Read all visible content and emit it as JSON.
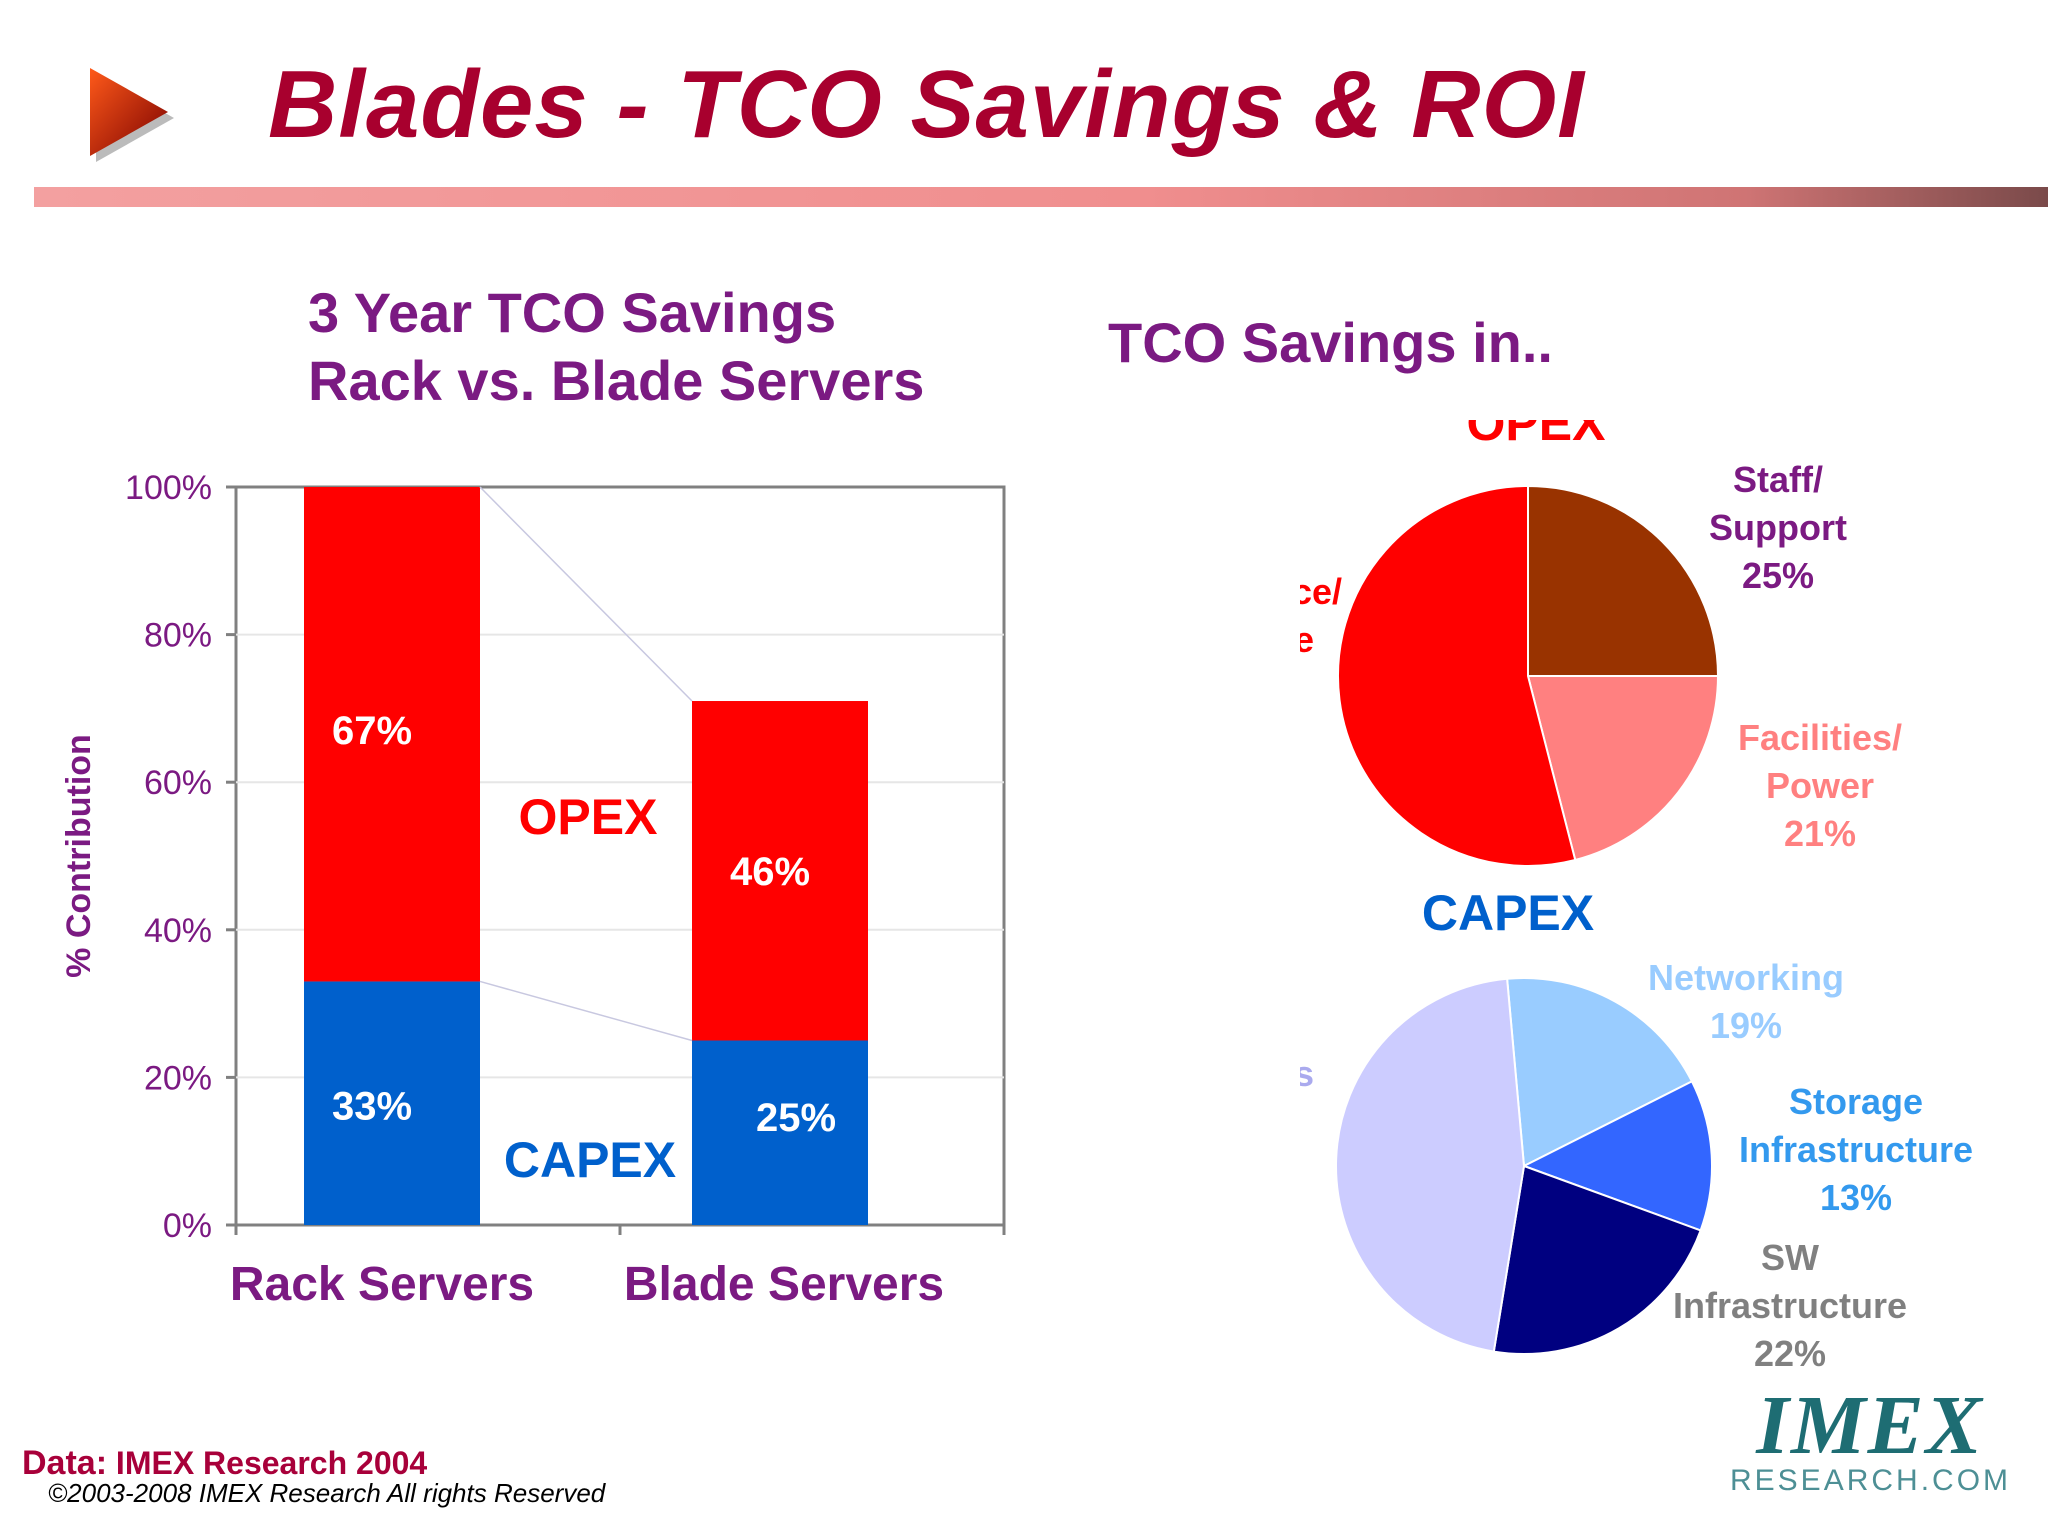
{
  "slide": {
    "title": "Blades - TCO Savings & ROI"
  },
  "chart_data": [
    {
      "type": "bar",
      "stacked": true,
      "title": "3 Year TCO Savings",
      "subtitle": "Rack vs. Blade Servers",
      "categories": [
        "Rack Servers",
        "Blade Servers"
      ],
      "series": [
        {
          "name": "CAPEX",
          "values": [
            33,
            25
          ],
          "labels": [
            "33%",
            "25%"
          ],
          "color": "#0060cc"
        },
        {
          "name": "OPEX",
          "values": [
            67,
            46
          ],
          "labels": [
            "67%",
            "46%"
          ],
          "color": "#ff0000"
        }
      ],
      "ylabel": "% Contribution",
      "ylim": [
        0,
        100
      ],
      "yticks": [
        "0%",
        "20%",
        "40%",
        "60%",
        "80%",
        "100%"
      ],
      "grid": true,
      "annotations": [
        "OPEX",
        "CAPEX"
      ]
    },
    {
      "type": "pie",
      "title": "TCO Savings in..",
      "name": "OPEX",
      "title_color": "#ff0000",
      "slices": [
        {
          "label": "Staff/",
          "label2": "Support",
          "pct_label": "25%",
          "value": 25,
          "color": "#993300",
          "label_color": "#7b1a82"
        },
        {
          "label": "Facilities/",
          "label2": "Power",
          "pct_label": "21%",
          "value": 21,
          "color": "#ff8080",
          "label_color": "#ff8080"
        },
        {
          "label": "Maintenance/",
          "label2": "Downtime",
          "pct_label": "54%",
          "value": 54,
          "color": "#ff0000",
          "label_color": "#ff0000"
        }
      ]
    },
    {
      "type": "pie",
      "name": "CAPEX",
      "title_color": "#0060cc",
      "slices": [
        {
          "label": "Networking",
          "label2": "",
          "pct_label": "19%",
          "value": 19,
          "color": "#99ccff",
          "label_color": "#99ccff"
        },
        {
          "label": "Storage",
          "label2": "Infrastructure",
          "pct_label": "13%",
          "value": 13,
          "color": "#3366ff",
          "label_color": "#3399ee"
        },
        {
          "label": "SW",
          "label2": "Infrastructure",
          "pct_label": "22%",
          "value": 22,
          "color": "#000080",
          "label_color": "#808080"
        },
        {
          "label": "Servers",
          "label2": "",
          "pct_label": "46%",
          "value": 46,
          "color": "#ccccff",
          "label_color": "#aaaaee"
        }
      ]
    }
  ],
  "footer": {
    "data_label": "Data:",
    "data_source": "IMEX Research 2004",
    "copyright": "©2003-2008  IMEX Research All rights Reserved"
  },
  "logo": {
    "main": "IMEX",
    "sub": "RESEARCH.COM"
  }
}
